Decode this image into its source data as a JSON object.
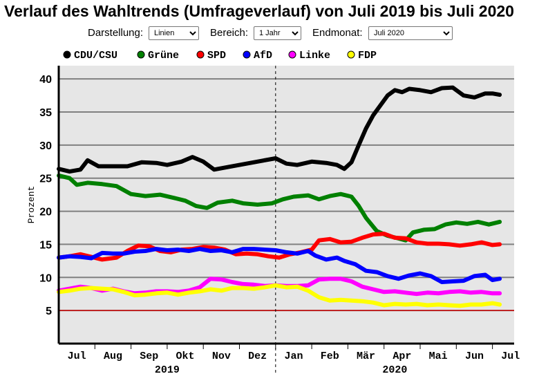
{
  "title": "Verlauf des Wahltrends (Umfrageverlauf) von Juli 2019 bis Juli 2020",
  "controls": {
    "darstellung_label": "Darstellung:",
    "darstellung_value": "Linien",
    "bereich_label": "Bereich:",
    "bereich_value": "1 Jahr",
    "endmonat_label": "Endmonat:",
    "endmonat_value": "Juli 2020"
  },
  "colors": {
    "plot_background": "#e6e6e6",
    "gridline": "#808080",
    "reference_line": "#cc0000"
  },
  "chart_data": {
    "type": "line",
    "ylabel": "Prozent",
    "ylim": [
      0,
      42
    ],
    "yticks": [
      5,
      10,
      15,
      20,
      25,
      30,
      35,
      40
    ],
    "reference_line_y": 5,
    "x_unit": "month index (0 = July 2019)",
    "xlim": [
      0,
      12.6
    ],
    "month_labels": [
      "Jul",
      "Aug",
      "Sep",
      "Okt",
      "Nov",
      "Dez",
      "Jan",
      "Feb",
      "Mär",
      "Apr",
      "Mai",
      "Jun",
      "Jul"
    ],
    "year_labels": [
      "2019",
      "2020"
    ],
    "legend_position": "top",
    "grid": true,
    "series": [
      {
        "name": "CDU/CSU",
        "color": "#000000",
        "points": [
          [
            0.0,
            26.4
          ],
          [
            0.3,
            26.0
          ],
          [
            0.6,
            26.3
          ],
          [
            0.8,
            27.7
          ],
          [
            1.1,
            26.8
          ],
          [
            1.5,
            26.8
          ],
          [
            1.9,
            26.8
          ],
          [
            2.3,
            27.4
          ],
          [
            2.7,
            27.3
          ],
          [
            3.0,
            27.0
          ],
          [
            3.4,
            27.5
          ],
          [
            3.7,
            28.2
          ],
          [
            4.0,
            27.5
          ],
          [
            4.3,
            26.3
          ],
          [
            4.7,
            26.7
          ],
          [
            5.0,
            27.0
          ],
          [
            5.3,
            27.3
          ],
          [
            5.6,
            27.6
          ],
          [
            6.0,
            28.0
          ],
          [
            6.3,
            27.2
          ],
          [
            6.6,
            27.0
          ],
          [
            7.0,
            27.5
          ],
          [
            7.4,
            27.3
          ],
          [
            7.7,
            27.0
          ],
          [
            7.9,
            26.4
          ],
          [
            8.1,
            27.4
          ],
          [
            8.3,
            30.0
          ],
          [
            8.5,
            32.5
          ],
          [
            8.7,
            34.5
          ],
          [
            8.9,
            36.0
          ],
          [
            9.1,
            37.5
          ],
          [
            9.3,
            38.3
          ],
          [
            9.5,
            38.0
          ],
          [
            9.7,
            38.5
          ],
          [
            10.0,
            38.3
          ],
          [
            10.3,
            38.0
          ],
          [
            10.6,
            38.6
          ],
          [
            10.9,
            38.7
          ],
          [
            11.2,
            37.5
          ],
          [
            11.5,
            37.2
          ],
          [
            11.8,
            37.8
          ],
          [
            12.0,
            37.8
          ],
          [
            12.2,
            37.6
          ]
        ]
      },
      {
        "name": "Grüne",
        "color": "#008000",
        "points": [
          [
            0.0,
            25.4
          ],
          [
            0.3,
            25.0
          ],
          [
            0.5,
            24.0
          ],
          [
            0.8,
            24.3
          ],
          [
            1.2,
            24.1
          ],
          [
            1.6,
            23.8
          ],
          [
            2.0,
            22.6
          ],
          [
            2.4,
            22.3
          ],
          [
            2.8,
            22.5
          ],
          [
            3.2,
            22.0
          ],
          [
            3.5,
            21.6
          ],
          [
            3.8,
            20.8
          ],
          [
            4.1,
            20.5
          ],
          [
            4.4,
            21.3
          ],
          [
            4.8,
            21.6
          ],
          [
            5.1,
            21.2
          ],
          [
            5.5,
            21.0
          ],
          [
            5.9,
            21.2
          ],
          [
            6.2,
            21.8
          ],
          [
            6.5,
            22.2
          ],
          [
            6.9,
            22.4
          ],
          [
            7.2,
            21.8
          ],
          [
            7.5,
            22.3
          ],
          [
            7.8,
            22.6
          ],
          [
            8.1,
            22.2
          ],
          [
            8.3,
            20.8
          ],
          [
            8.5,
            19.0
          ],
          [
            8.8,
            17.0
          ],
          [
            9.1,
            16.3
          ],
          [
            9.4,
            15.9
          ],
          [
            9.6,
            15.6
          ],
          [
            9.8,
            16.8
          ],
          [
            10.1,
            17.2
          ],
          [
            10.4,
            17.3
          ],
          [
            10.7,
            18.0
          ],
          [
            11.0,
            18.3
          ],
          [
            11.3,
            18.1
          ],
          [
            11.6,
            18.4
          ],
          [
            11.9,
            18.0
          ],
          [
            12.2,
            18.4
          ]
        ]
      },
      {
        "name": "SPD",
        "color": "#ff0000",
        "points": [
          [
            0.0,
            13.0
          ],
          [
            0.3,
            13.2
          ],
          [
            0.6,
            13.5
          ],
          [
            0.9,
            13.1
          ],
          [
            1.2,
            12.7
          ],
          [
            1.6,
            13.0
          ],
          [
            1.9,
            14.0
          ],
          [
            2.2,
            14.8
          ],
          [
            2.5,
            14.7
          ],
          [
            2.8,
            14.0
          ],
          [
            3.1,
            13.8
          ],
          [
            3.4,
            14.2
          ],
          [
            3.7,
            14.3
          ],
          [
            4.0,
            14.6
          ],
          [
            4.3,
            14.5
          ],
          [
            4.6,
            14.2
          ],
          [
            4.9,
            13.5
          ],
          [
            5.2,
            13.6
          ],
          [
            5.5,
            13.5
          ],
          [
            5.8,
            13.2
          ],
          [
            6.1,
            13.0
          ],
          [
            6.4,
            13.5
          ],
          [
            6.7,
            13.8
          ],
          [
            7.0,
            14.2
          ],
          [
            7.2,
            15.6
          ],
          [
            7.5,
            15.8
          ],
          [
            7.8,
            15.3
          ],
          [
            8.1,
            15.4
          ],
          [
            8.4,
            16.0
          ],
          [
            8.7,
            16.5
          ],
          [
            9.0,
            16.6
          ],
          [
            9.3,
            16.0
          ],
          [
            9.6,
            15.9
          ],
          [
            9.9,
            15.3
          ],
          [
            10.2,
            15.1
          ],
          [
            10.5,
            15.1
          ],
          [
            10.8,
            15.0
          ],
          [
            11.1,
            14.8
          ],
          [
            11.4,
            15.0
          ],
          [
            11.7,
            15.3
          ],
          [
            12.0,
            14.9
          ],
          [
            12.2,
            15.0
          ]
        ]
      },
      {
        "name": "AfD",
        "color": "#0000ff",
        "points": [
          [
            0.0,
            13.0
          ],
          [
            0.3,
            13.2
          ],
          [
            0.6,
            13.1
          ],
          [
            0.9,
            12.9
          ],
          [
            1.2,
            13.7
          ],
          [
            1.5,
            13.6
          ],
          [
            1.8,
            13.6
          ],
          [
            2.1,
            13.9
          ],
          [
            2.4,
            14.0
          ],
          [
            2.7,
            14.3
          ],
          [
            3.0,
            14.1
          ],
          [
            3.3,
            14.2
          ],
          [
            3.6,
            14.0
          ],
          [
            3.9,
            14.3
          ],
          [
            4.2,
            14.0
          ],
          [
            4.5,
            14.1
          ],
          [
            4.8,
            13.8
          ],
          [
            5.1,
            14.3
          ],
          [
            5.4,
            14.3
          ],
          [
            5.7,
            14.2
          ],
          [
            6.0,
            14.1
          ],
          [
            6.3,
            13.8
          ],
          [
            6.6,
            13.6
          ],
          [
            6.9,
            14.0
          ],
          [
            7.1,
            13.3
          ],
          [
            7.4,
            12.7
          ],
          [
            7.7,
            13.0
          ],
          [
            7.9,
            12.5
          ],
          [
            8.2,
            12.0
          ],
          [
            8.5,
            11.0
          ],
          [
            8.8,
            10.8
          ],
          [
            9.1,
            10.2
          ],
          [
            9.4,
            9.8
          ],
          [
            9.7,
            10.3
          ],
          [
            10.0,
            10.6
          ],
          [
            10.3,
            10.2
          ],
          [
            10.6,
            9.3
          ],
          [
            10.9,
            9.4
          ],
          [
            11.2,
            9.5
          ],
          [
            11.5,
            10.2
          ],
          [
            11.8,
            10.4
          ],
          [
            12.0,
            9.6
          ],
          [
            12.2,
            9.8
          ]
        ]
      },
      {
        "name": "Linke",
        "color": "#ff00ff",
        "points": [
          [
            0.0,
            8.0
          ],
          [
            0.3,
            8.3
          ],
          [
            0.6,
            8.6
          ],
          [
            0.9,
            8.4
          ],
          [
            1.2,
            8.0
          ],
          [
            1.5,
            8.3
          ],
          [
            1.8,
            7.9
          ],
          [
            2.1,
            7.6
          ],
          [
            2.4,
            7.7
          ],
          [
            2.7,
            7.9
          ],
          [
            3.0,
            7.9
          ],
          [
            3.3,
            7.8
          ],
          [
            3.6,
            8.0
          ],
          [
            3.9,
            8.5
          ],
          [
            4.2,
            9.8
          ],
          [
            4.5,
            9.7
          ],
          [
            4.8,
            9.3
          ],
          [
            5.1,
            9.0
          ],
          [
            5.4,
            8.9
          ],
          [
            5.7,
            8.7
          ],
          [
            6.0,
            8.8
          ],
          [
            6.3,
            8.7
          ],
          [
            6.6,
            8.7
          ],
          [
            6.9,
            8.8
          ],
          [
            7.2,
            9.7
          ],
          [
            7.5,
            9.8
          ],
          [
            7.8,
            9.8
          ],
          [
            8.1,
            9.4
          ],
          [
            8.4,
            8.6
          ],
          [
            8.7,
            8.2
          ],
          [
            9.0,
            7.8
          ],
          [
            9.3,
            7.9
          ],
          [
            9.6,
            7.7
          ],
          [
            9.9,
            7.5
          ],
          [
            10.2,
            7.7
          ],
          [
            10.5,
            7.6
          ],
          [
            10.8,
            7.8
          ],
          [
            11.1,
            7.9
          ],
          [
            11.4,
            7.7
          ],
          [
            11.7,
            7.8
          ],
          [
            12.0,
            7.6
          ],
          [
            12.2,
            7.6
          ]
        ]
      },
      {
        "name": "FDP",
        "color": "#ffff00",
        "points": [
          [
            0.0,
            7.8
          ],
          [
            0.3,
            8.0
          ],
          [
            0.6,
            8.3
          ],
          [
            0.9,
            8.4
          ],
          [
            1.2,
            8.3
          ],
          [
            1.5,
            8.2
          ],
          [
            1.8,
            7.8
          ],
          [
            2.1,
            7.3
          ],
          [
            2.4,
            7.4
          ],
          [
            2.7,
            7.6
          ],
          [
            3.0,
            7.7
          ],
          [
            3.3,
            7.4
          ],
          [
            3.6,
            7.7
          ],
          [
            3.9,
            7.9
          ],
          [
            4.2,
            8.2
          ],
          [
            4.5,
            8.0
          ],
          [
            4.8,
            8.4
          ],
          [
            5.1,
            8.4
          ],
          [
            5.4,
            8.3
          ],
          [
            5.7,
            8.5
          ],
          [
            6.0,
            8.8
          ],
          [
            6.3,
            8.5
          ],
          [
            6.6,
            8.6
          ],
          [
            6.9,
            8.0
          ],
          [
            7.2,
            7.0
          ],
          [
            7.5,
            6.5
          ],
          [
            7.8,
            6.6
          ],
          [
            8.1,
            6.5
          ],
          [
            8.4,
            6.4
          ],
          [
            8.7,
            6.2
          ],
          [
            9.0,
            5.8
          ],
          [
            9.3,
            6.0
          ],
          [
            9.6,
            5.9
          ],
          [
            9.9,
            6.0
          ],
          [
            10.2,
            5.8
          ],
          [
            10.5,
            5.9
          ],
          [
            10.8,
            5.8
          ],
          [
            11.1,
            5.7
          ],
          [
            11.4,
            5.9
          ],
          [
            11.7,
            5.9
          ],
          [
            12.0,
            6.1
          ],
          [
            12.2,
            5.9
          ]
        ]
      }
    ]
  }
}
